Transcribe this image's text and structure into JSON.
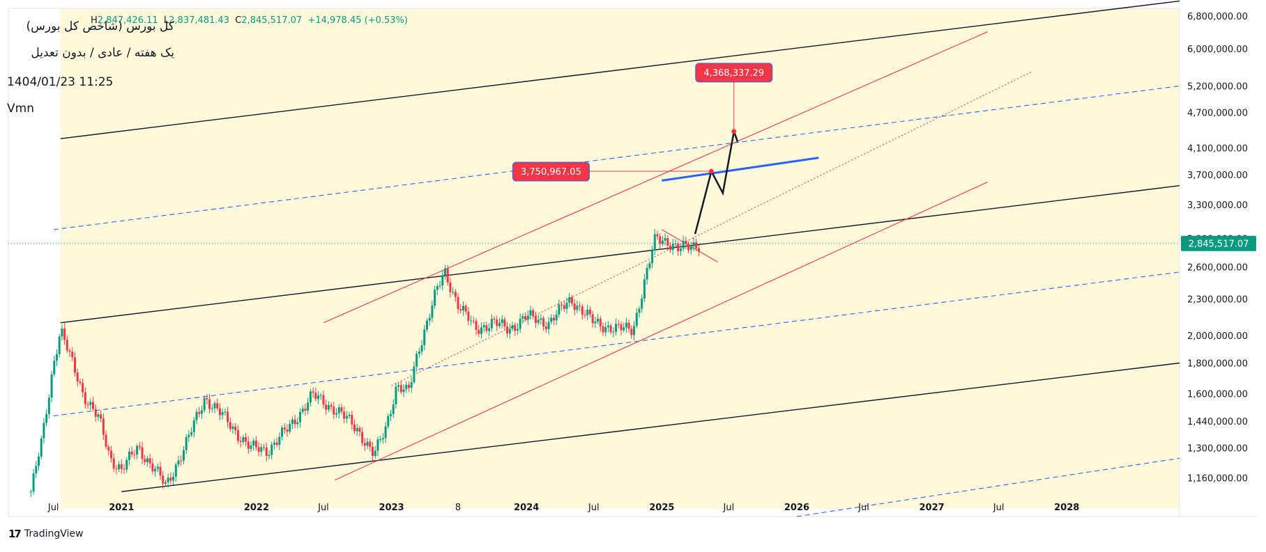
{
  "legend": {
    "title": "کل بورس (شاخص کل بورس)",
    "subtitle": "یک هفته / عادی / بدون تعدیل",
    "datetime": "1404/01/23 11:25",
    "volume_label": "Vmn",
    "ohlc": {
      "h_label": "H",
      "h": "2,847,426.11",
      "l_label": "L",
      "l": "2,837,481.43",
      "c_label": "C",
      "c": "2,845,517.07",
      "change": "+14,978.45 (+0.53%)"
    }
  },
  "brand": {
    "name": "TradingView"
  },
  "colors": {
    "up": "#089981",
    "down": "#f23645",
    "channel_fill": "#fff9dc",
    "dashed": "#2962ff",
    "red_line": "#f23645"
  },
  "chart_data": {
    "type": "candlestick",
    "scale": "log",
    "interval": "1W",
    "last_price": 2845517.07,
    "last_price_label": "2,845,517.07",
    "y_ticks": [
      1160000,
      1300000,
      1440000,
      1600000,
      1800000,
      2000000,
      2300000,
      2600000,
      2900000,
      3300000,
      3700000,
      4100000,
      4700000,
      5200000,
      6000000,
      6800000
    ],
    "y_tick_labels": [
      "1,160,000.00",
      "1,300,000.00",
      "1,440,000.00",
      "1,600,000.00",
      "1,800,000.00",
      "2,000,000.00",
      "2,300,000.00",
      "2,600,000.00",
      "2,900,000.00",
      "3,300,000.00",
      "3,700,000.00",
      "4,100,000.00",
      "4,700,000.00",
      "5,200,000.00",
      "6,000,000.00",
      "6,800,000.00"
    ],
    "x_ticks": [
      {
        "label": "Jul",
        "date": "2020-07-01"
      },
      {
        "label": "2021",
        "date": "2021-01-01"
      },
      {
        "label": "2022",
        "date": "2022-01-01"
      },
      {
        "label": "Jul",
        "date": "2022-07-01"
      },
      {
        "label": "2023",
        "date": "2023-01-01"
      },
      {
        "label": "8",
        "date": "2023-06-30"
      },
      {
        "label": "2024",
        "date": "2024-01-01"
      },
      {
        "label": "Jul",
        "date": "2024-07-01"
      },
      {
        "label": "2025",
        "date": "2025-01-01"
      },
      {
        "label": "Jul",
        "date": "2025-07-01"
      },
      {
        "label": "2026",
        "date": "2026-01-01"
      },
      {
        "label": "Jul",
        "date": "2026-07-01"
      },
      {
        "label": "2027",
        "date": "2027-01-01"
      },
      {
        "label": "Jul",
        "date": "2027-07-01"
      },
      {
        "label": "2028",
        "date": "2028-01-01"
      }
    ],
    "price_path": [
      {
        "date": "2020-05-01",
        "value": 1100000
      },
      {
        "date": "2020-06-01",
        "value": 1350000
      },
      {
        "date": "2020-07-01",
        "value": 1800000
      },
      {
        "date": "2020-07-20",
        "value": 2050000
      },
      {
        "date": "2020-08-20",
        "value": 1800000
      },
      {
        "date": "2020-09-20",
        "value": 1600000
      },
      {
        "date": "2020-11-01",
        "value": 1450000
      },
      {
        "date": "2020-12-01",
        "value": 1250000
      },
      {
        "date": "2021-01-01",
        "value": 1200000
      },
      {
        "date": "2021-02-15",
        "value": 1300000
      },
      {
        "date": "2021-04-01",
        "value": 1200000
      },
      {
        "date": "2021-05-01",
        "value": 1120000
      },
      {
        "date": "2021-07-01",
        "value": 1350000
      },
      {
        "date": "2021-08-15",
        "value": 1580000
      },
      {
        "date": "2021-10-01",
        "value": 1470000
      },
      {
        "date": "2021-12-15",
        "value": 1300000
      },
      {
        "date": "2022-02-01",
        "value": 1290000
      },
      {
        "date": "2022-04-01",
        "value": 1410000
      },
      {
        "date": "2022-06-01",
        "value": 1590000
      },
      {
        "date": "2022-08-01",
        "value": 1510000
      },
      {
        "date": "2022-10-01",
        "value": 1400000
      },
      {
        "date": "2022-11-15",
        "value": 1260000
      },
      {
        "date": "2022-12-15",
        "value": 1400000
      },
      {
        "date": "2023-01-15",
        "value": 1650000
      },
      {
        "date": "2023-02-15",
        "value": 1600000
      },
      {
        "date": "2023-03-15",
        "value": 1900000
      },
      {
        "date": "2023-05-01",
        "value": 2350000
      },
      {
        "date": "2023-05-25",
        "value": 2550000
      },
      {
        "date": "2023-07-01",
        "value": 2250000
      },
      {
        "date": "2023-08-15",
        "value": 2050000
      },
      {
        "date": "2023-10-01",
        "value": 2100000
      },
      {
        "date": "2023-11-15",
        "value": 2050000
      },
      {
        "date": "2024-01-01",
        "value": 2150000
      },
      {
        "date": "2024-03-01",
        "value": 2100000
      },
      {
        "date": "2024-05-01",
        "value": 2300000
      },
      {
        "date": "2024-07-01",
        "value": 2100000
      },
      {
        "date": "2024-09-01",
        "value": 2050000
      },
      {
        "date": "2024-10-15",
        "value": 2050000
      },
      {
        "date": "2024-11-15",
        "value": 2450000
      },
      {
        "date": "2024-12-15",
        "value": 2900000
      },
      {
        "date": "2025-01-15",
        "value": 2880000
      },
      {
        "date": "2025-02-15",
        "value": 2780000
      },
      {
        "date": "2025-03-15",
        "value": 2810000
      },
      {
        "date": "2025-04-12",
        "value": 2845517
      }
    ],
    "trend_lines": [
      {
        "name": "channel-upper",
        "style": "solid",
        "color": "#131722",
        "points": [
          {
            "date": "2020-07-20",
            "value": 4250000
          },
          {
            "date": "2028-11-01",
            "value": 7200000
          }
        ]
      },
      {
        "name": "channel-middle",
        "style": "solid",
        "color": "#131722",
        "points": [
          {
            "date": "2020-07-20",
            "value": 2100000
          },
          {
            "date": "2028-11-01",
            "value": 3550000
          }
        ]
      },
      {
        "name": "channel-lower",
        "style": "solid",
        "color": "#131722",
        "points": [
          {
            "date": "2021-01-01",
            "value": 1100000
          },
          {
            "date": "2028-11-01",
            "value": 1800000
          }
        ]
      },
      {
        "name": "dashed-upper",
        "style": "dashed",
        "color": "#2962ff",
        "points": [
          {
            "date": "2020-07-01",
            "value": 3000000
          },
          {
            "date": "2028-11-01",
            "value": 5200000
          }
        ]
      },
      {
        "name": "dashed-middle",
        "style": "dashed",
        "color": "#2962ff",
        "points": [
          {
            "date": "2020-07-01",
            "value": 1470000
          },
          {
            "date": "2028-11-01",
            "value": 2550000
          }
        ]
      },
      {
        "name": "dashed-lower",
        "style": "dashed",
        "color": "#2962ff",
        "points": [
          {
            "date": "2026-01-01",
            "value": 1000000
          },
          {
            "date": "2028-11-01",
            "value": 1250000
          }
        ]
      },
      {
        "name": "red-upper",
        "style": "solid",
        "color": "#f23645",
        "points": [
          {
            "date": "2022-07-01",
            "value": 2100000
          },
          {
            "date": "2027-06-01",
            "value": 6400000
          }
        ]
      },
      {
        "name": "red-lower",
        "style": "solid",
        "color": "#f23645",
        "points": [
          {
            "date": "2022-08-01",
            "value": 1150000
          },
          {
            "date": "2027-06-01",
            "value": 3600000
          }
        ]
      },
      {
        "name": "red-dotted",
        "style": "dotted",
        "color": "#f23645",
        "points": [
          {
            "date": "2023-01-01",
            "value": 1650000
          },
          {
            "date": "2027-10-01",
            "value": 5500000
          }
        ]
      },
      {
        "name": "red-short",
        "style": "solid",
        "color": "#f23645",
        "points": [
          {
            "date": "2025-01-01",
            "value": 3000000
          },
          {
            "date": "2025-06-01",
            "value": 2650000
          }
        ]
      },
      {
        "name": "blue-bold",
        "style": "solid",
        "color": "#2962ff",
        "points": [
          {
            "date": "2025-01-01",
            "value": 3620000
          },
          {
            "date": "2026-03-01",
            "value": 3950000
          }
        ]
      }
    ],
    "projection": [
      {
        "date": "2025-04-01",
        "value": 2950000
      },
      {
        "date": "2025-05-15",
        "value": 3750967.05
      },
      {
        "date": "2025-06-15",
        "value": 3450000
      },
      {
        "date": "2025-07-15",
        "value": 4368337.29
      },
      {
        "date": "2025-07-25",
        "value": 4200000
      }
    ],
    "targets": [
      {
        "label": "3,750,967.05",
        "value": 3750967.05,
        "date": "2025-05-15"
      },
      {
        "label": "4,368,337.29",
        "value": 4368337.29,
        "date": "2025-07-15"
      }
    ]
  }
}
